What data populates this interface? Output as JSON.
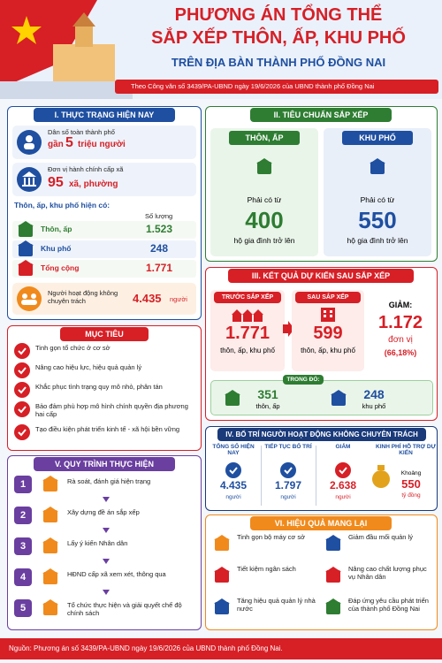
{
  "header": {
    "title_line1": "PHƯƠNG ÁN TỔNG THỂ",
    "title_line2": "SẮP XẾP THÔN, ẤP, KHU PHỐ",
    "subtitle": "TRÊN ĐỊA BÀN THÀNH PHỐ ĐỒNG NAI",
    "reference": "Theo Công văn số 3439/PA-UBND ngày 19/6/2026 của UBND thành phố Đồng Nai"
  },
  "current": {
    "heading": "I. THỰC TRẠNG HIỆN NAY",
    "population_label": "Dân số toàn thành phố",
    "population_prefix": "gần",
    "population_value": "5",
    "population_unit": "triệu người",
    "admin_label": "Đơn vị hành chính cấp xã",
    "admin_value": "95",
    "admin_unit": "xã, phường",
    "existing_heading": "Thôn, ấp, khu phố hiện có:",
    "count_header": "Số lượng",
    "rows": [
      {
        "label": "Thôn, ấp",
        "value": "1.523"
      },
      {
        "label": "Khu phố",
        "value": "248"
      },
      {
        "label": "Tổng cộng",
        "value": "1.771"
      }
    ],
    "workers_label": "Người hoạt động không chuyên trách",
    "workers_value": "4.435",
    "workers_unit": "người"
  },
  "standards": {
    "heading": "II. TIÊU CHUẨN SẮP XẾP",
    "cards": [
      {
        "title": "THÔN, ẤP",
        "prefix": "Phải có từ",
        "value": "400",
        "unit": "hộ gia đình trở lên"
      },
      {
        "title": "KHU PHỐ",
        "prefix": "Phải có từ",
        "value": "550",
        "unit": "hộ gia đình trở lên"
      }
    ]
  },
  "results": {
    "heading": "III. KẾT QUẢ DỰ KIẾN SAU SẮP XẾP",
    "before_title": "TRƯỚC SẮP XẾP",
    "before_value": "1.771",
    "before_unit": "thôn, ấp, khu phố",
    "after_title": "SAU SẮP XẾP",
    "after_value": "599",
    "after_unit": "thôn, ấp, khu phố",
    "reduce_label": "GIẢM:",
    "reduce_value": "1.172",
    "reduce_unit": "đơn vị",
    "reduce_percent": "(66,18%)",
    "breakdown_label": "TRONG ĐÓ:",
    "breakdown": [
      {
        "value": "351",
        "label": "thôn, ấp"
      },
      {
        "value": "248",
        "label": "khu phố"
      }
    ]
  },
  "goals": {
    "heading": "MỤC TIÊU",
    "items": [
      "Tinh gọn tổ chức ở cơ sở",
      "Nâng cao hiệu lực, hiệu quả quản lý",
      "Khắc phục tình trạng quy mô nhỏ, phân tán",
      "Bảo đảm phù hợp mô hình chính quyền địa phương hai cấp",
      "Tạo điều kiện phát triển kinh tế - xã hội bền vững"
    ]
  },
  "staffing": {
    "heading": "IV. BỐ TRÍ NGƯỜI HOẠT ĐỘNG KHÔNG CHUYÊN TRÁCH",
    "columns": [
      {
        "title": "TỔNG SỐ HIỆN NAY",
        "value": "4.435",
        "unit": "người"
      },
      {
        "title": "TIẾP TỤC BỐ TRÍ",
        "value": "1.797",
        "unit": "người"
      },
      {
        "title": "GIẢM",
        "value": "2.638",
        "unit": "người"
      }
    ],
    "budget_title": "KINH PHÍ HỖ TRỢ DỰ KIẾN",
    "budget_prefix": "Khoảng",
    "budget_value": "550",
    "budget_unit": "tỷ đồng"
  },
  "process": {
    "heading": "V. QUY TRÌNH THỰC HIỆN",
    "steps": [
      {
        "number": "1",
        "text": "Rà soát, đánh giá hiện trạng"
      },
      {
        "number": "2",
        "text": "Xây dựng đề án sắp xếp"
      },
      {
        "number": "3",
        "text": "Lấy ý kiến Nhân dân"
      },
      {
        "number": "4",
        "text": "HĐND cấp xã xem xét, thông qua"
      },
      {
        "number": "5",
        "text": "Tổ chức thực hiện và giải quyết chế độ chính sách"
      }
    ]
  },
  "effects": {
    "heading": "VI. HIỆU QUẢ MANG LẠI",
    "items": [
      "Tinh gọn bộ máy cơ sở",
      "Giảm đầu mối quản lý",
      "Tiết kiệm ngân sách",
      "Nâng cao chất lượng phục vụ Nhân dân",
      "Tăng hiệu quả quản lý nhà nước",
      "Đáp ứng yêu cầu phát triển của thành phố Đồng Nai"
    ]
  },
  "footer": {
    "source": "Nguồn: Phương án số 3439/PA-UBND ngày 19/6/2026 của UBND thành phố Đồng Nai."
  }
}
